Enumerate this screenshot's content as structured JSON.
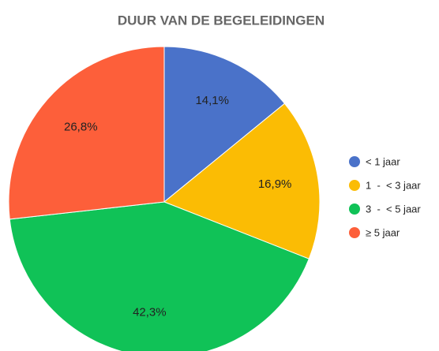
{
  "chart_data": {
    "type": "pie",
    "title": "DUUR VAN DE BEGELEIDINGEN",
    "categories": [
      "< 1 jaar",
      "1  -  < 3 jaar",
      "3  -  < 5 jaar",
      "≥ 5 jaar"
    ],
    "values": [
      14.1,
      16.9,
      42.3,
      26.8
    ],
    "value_labels": [
      "14,1%",
      "16,9%",
      "42,3%",
      "26,8%"
    ],
    "colors": [
      "#4a72c9",
      "#fbbc04",
      "#10c257",
      "#fd5f3a"
    ],
    "legend": "right"
  }
}
